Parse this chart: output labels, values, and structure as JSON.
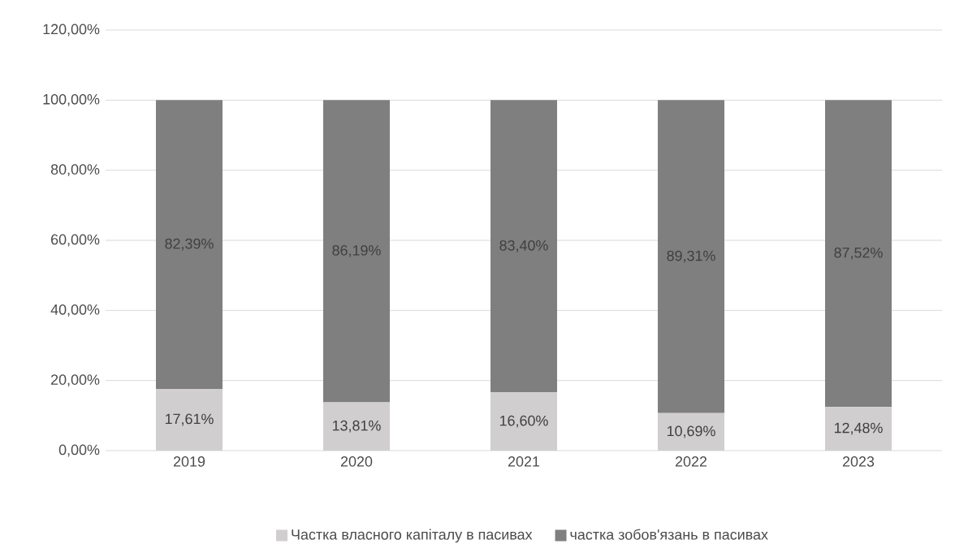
{
  "chart_data": {
    "type": "bar",
    "stacked": true,
    "categories": [
      "2019",
      "2020",
      "2021",
      "2022",
      "2023"
    ],
    "series": [
      {
        "name": "Частка власного капіталу в пасивах",
        "color": "#d0cece",
        "values": [
          17.61,
          13.81,
          16.6,
          10.69,
          12.48
        ],
        "value_labels": [
          "17,61%",
          "13,81%",
          "16,60%",
          "10,69%",
          "12,48%"
        ]
      },
      {
        "name": "частка зобов'язань в пасивах",
        "color": "#7f7f7f",
        "values": [
          82.39,
          86.19,
          83.4,
          89.31,
          87.52
        ],
        "value_labels": [
          "82,39%",
          "86,19%",
          "83,40%",
          "89,31%",
          "87,52%"
        ]
      }
    ],
    "ylim": [
      0,
      120
    ],
    "yticks": [
      {
        "value": 0,
        "label": "0,00%"
      },
      {
        "value": 20,
        "label": "20,00%"
      },
      {
        "value": 40,
        "label": "40,00%"
      },
      {
        "value": 60,
        "label": "60,00%"
      },
      {
        "value": 80,
        "label": "80,00%"
      },
      {
        "value": 100,
        "label": "100,00%"
      },
      {
        "value": 120,
        "label": "120,00%"
      }
    ],
    "grid": "y",
    "legend": "bottom"
  }
}
